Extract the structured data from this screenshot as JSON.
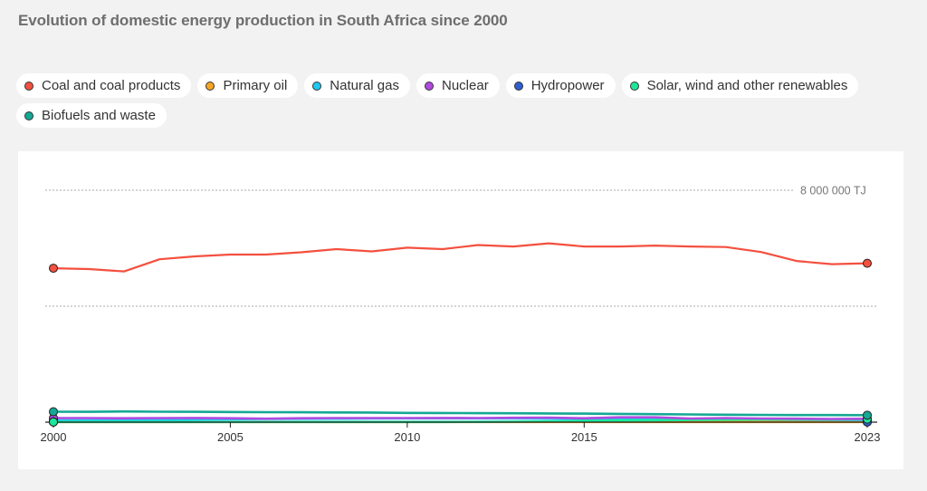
{
  "title": "Evolution of domestic energy production in South Africa since 2000",
  "legend": [
    {
      "label": "Coal and coal products",
      "color": "#f4503f"
    },
    {
      "label": "Primary oil",
      "color": "#f5a623"
    },
    {
      "label": "Natural gas",
      "color": "#1ec8f0"
    },
    {
      "label": "Nuclear",
      "color": "#b04ae0"
    },
    {
      "label": "Hydropower",
      "color": "#2f5fcf"
    },
    {
      "label": "Solar, wind and other renewables",
      "color": "#1de89a"
    },
    {
      "label": "Biofuels and waste",
      "color": "#14a894"
    }
  ],
  "chart_data": {
    "type": "line",
    "title": "Evolution of domestic energy production in South Africa since 2000",
    "xlabel": "",
    "ylabel": "",
    "unit": "TJ",
    "x": [
      2000,
      2001,
      2002,
      2003,
      2004,
      2005,
      2006,
      2007,
      2008,
      2009,
      2010,
      2011,
      2012,
      2013,
      2014,
      2015,
      2016,
      2017,
      2018,
      2019,
      2020,
      2021,
      2022,
      2023
    ],
    "x_ticks": [
      "2000",
      "2005",
      "2010",
      "2015",
      "2023"
    ],
    "x_tick_values": [
      2000,
      2005,
      2010,
      2015,
      2023
    ],
    "y_gridlines": [
      4000000,
      8000000
    ],
    "y_gridline_label": "8 000 000 TJ",
    "ylim": [
      0,
      8000000
    ],
    "grid": true,
    "legend_position": "top",
    "series": [
      {
        "name": "Coal and coal products",
        "color": "#f4503f",
        "values": [
          5310000,
          5280000,
          5200000,
          5620000,
          5720000,
          5780000,
          5780000,
          5860000,
          5970000,
          5890000,
          6020000,
          5970000,
          6110000,
          6060000,
          6170000,
          6060000,
          6060000,
          6090000,
          6060000,
          6040000,
          5870000,
          5560000,
          5450000,
          5480000
        ]
      },
      {
        "name": "Primary oil",
        "color": "#f5a623",
        "values": [
          5000,
          5000,
          5000,
          5000,
          5000,
          5000,
          5000,
          5000,
          5000,
          5000,
          5000,
          5000,
          5000,
          5000,
          5000,
          5000,
          5000,
          5000,
          5000,
          5000,
          5000,
          5000,
          5000,
          5000
        ]
      },
      {
        "name": "Natural gas",
        "color": "#1ec8f0",
        "values": [
          60000,
          65000,
          70000,
          80000,
          90000,
          100000,
          110000,
          115000,
          120000,
          125000,
          130000,
          130000,
          130000,
          125000,
          120000,
          115000,
          110000,
          105000,
          100000,
          95000,
          90000,
          85000,
          80000,
          75000
        ]
      },
      {
        "name": "Nuclear",
        "color": "#b04ae0",
        "values": [
          140000,
          140000,
          135000,
          140000,
          145000,
          135000,
          120000,
          135000,
          140000,
          140000,
          140000,
          145000,
          140000,
          150000,
          155000,
          135000,
          165000,
          165000,
          125000,
          140000,
          125000,
          120000,
          110000,
          115000
        ]
      },
      {
        "name": "Hydropower",
        "color": "#2f5fcf",
        "values": [
          10000,
          8000,
          10000,
          9000,
          10000,
          10000,
          10000,
          8000,
          10000,
          10000,
          8000,
          8000,
          8000,
          8000,
          8000,
          8000,
          8000,
          8000,
          8000,
          8000,
          8000,
          8000,
          8000,
          8000
        ]
      },
      {
        "name": "Solar, wind and other renewables",
        "color": "#1de89a",
        "values": [
          5000,
          5000,
          5000,
          5000,
          5000,
          5000,
          5000,
          5000,
          5000,
          5000,
          5000,
          5000,
          8000,
          15000,
          25000,
          40000,
          55000,
          65000,
          75000,
          85000,
          90000,
          95000,
          100000,
          105000
        ]
      },
      {
        "name": "Biofuels and waste",
        "color": "#14a894",
        "values": [
          360000,
          355000,
          370000,
          360000,
          355000,
          350000,
          345000,
          340000,
          335000,
          330000,
          320000,
          315000,
          310000,
          305000,
          300000,
          295000,
          285000,
          275000,
          265000,
          255000,
          250000,
          245000,
          245000,
          240000
        ]
      }
    ]
  }
}
